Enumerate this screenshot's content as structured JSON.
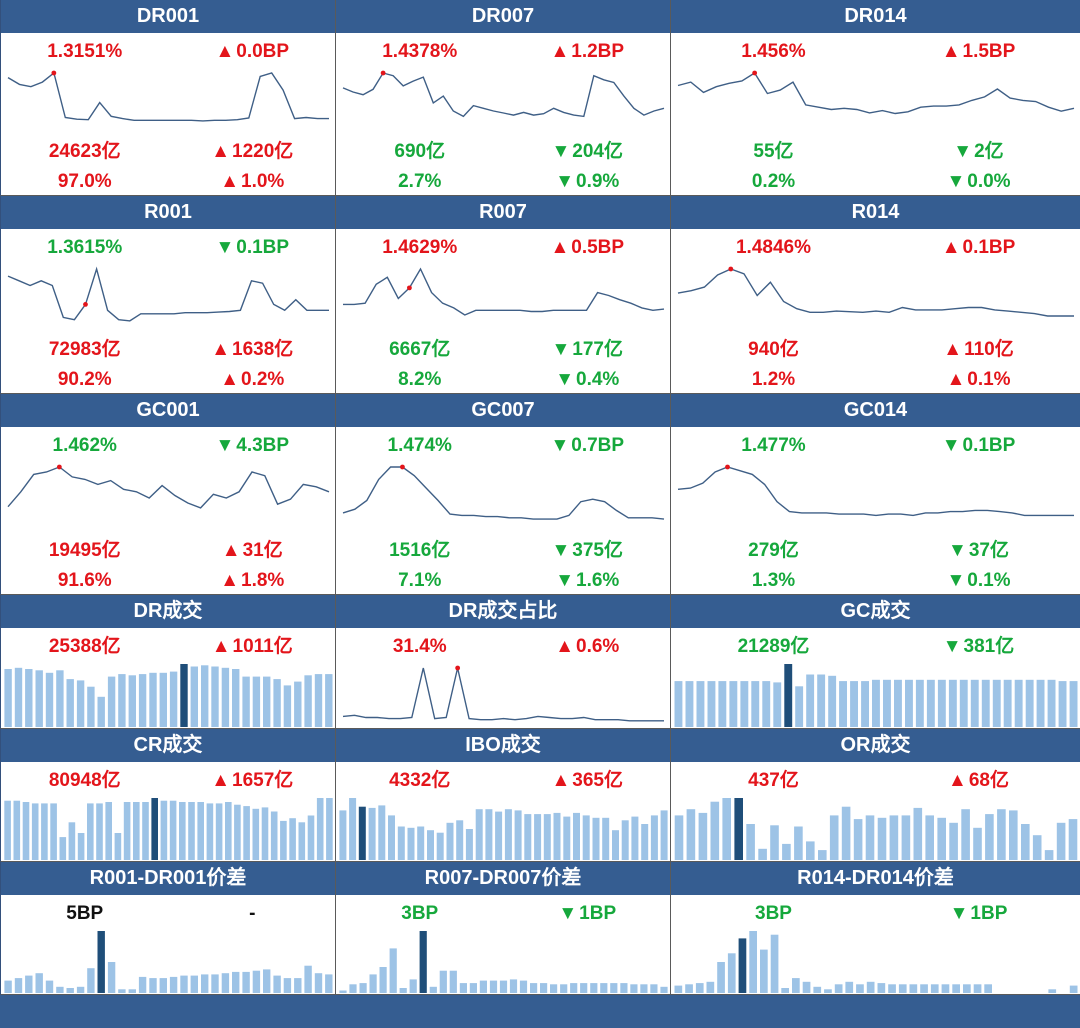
{
  "colors": {
    "header_bg": "#355d91",
    "up": "#e3151b",
    "down": "#16a83c",
    "neutral": "#111111",
    "line": "#3f5f86",
    "bar": "#9dc3e6",
    "bar_highlight": "#1f4e79",
    "marker": "#e3151b"
  },
  "panels": [
    {
      "title": "DR001",
      "kind": "line",
      "rows": [
        [
          {
            "text": "1.3151%",
            "color": "red"
          },
          {
            "text": "0.0BP",
            "color": "red",
            "dir": "up"
          }
        ],
        [
          {
            "text": "24623亿",
            "color": "red"
          },
          {
            "text": "1220亿",
            "color": "red",
            "dir": "up"
          }
        ],
        [
          {
            "text": "97.0%",
            "color": "red"
          },
          {
            "text": "1.0%",
            "color": "red",
            "dir": "up"
          }
        ]
      ],
      "marker_index": 4
    },
    {
      "title": "DR007",
      "kind": "line",
      "rows": [
        [
          {
            "text": "1.4378%",
            "color": "red"
          },
          {
            "text": "1.2BP",
            "color": "red",
            "dir": "up"
          }
        ],
        [
          {
            "text": "690亿",
            "color": "green"
          },
          {
            "text": "204亿",
            "color": "green",
            "dir": "down"
          }
        ],
        [
          {
            "text": "2.7%",
            "color": "green"
          },
          {
            "text": "0.9%",
            "color": "green",
            "dir": "down"
          }
        ]
      ],
      "marker_index": 4
    },
    {
      "title": "DR014",
      "kind": "line",
      "rows": [
        [
          {
            "text": "1.456%",
            "color": "red"
          },
          {
            "text": "1.5BP",
            "color": "red",
            "dir": "up"
          }
        ],
        [
          {
            "text": "55亿",
            "color": "green"
          },
          {
            "text": "2亿",
            "color": "green",
            "dir": "down"
          }
        ],
        [
          {
            "text": "0.2%",
            "color": "green"
          },
          {
            "text": "0.0%",
            "color": "green",
            "dir": "down"
          }
        ]
      ],
      "marker_index": 6
    },
    {
      "title": "R001",
      "kind": "line",
      "rows": [
        [
          {
            "text": "1.3615%",
            "color": "green"
          },
          {
            "text": "0.1BP",
            "color": "green",
            "dir": "down"
          }
        ],
        [
          {
            "text": "72983亿",
            "color": "red"
          },
          {
            "text": "1638亿",
            "color": "red",
            "dir": "up"
          }
        ],
        [
          {
            "text": "90.2%",
            "color": "red"
          },
          {
            "text": "0.2%",
            "color": "red",
            "dir": "up"
          }
        ]
      ],
      "marker_index": 7
    },
    {
      "title": "R007",
      "kind": "line",
      "rows": [
        [
          {
            "text": "1.4629%",
            "color": "red"
          },
          {
            "text": "0.5BP",
            "color": "red",
            "dir": "up"
          }
        ],
        [
          {
            "text": "6667亿",
            "color": "green"
          },
          {
            "text": "177亿",
            "color": "green",
            "dir": "down"
          }
        ],
        [
          {
            "text": "8.2%",
            "color": "green"
          },
          {
            "text": "0.4%",
            "color": "green",
            "dir": "down"
          }
        ]
      ],
      "marker_index": 6
    },
    {
      "title": "R014",
      "kind": "line",
      "rows": [
        [
          {
            "text": "1.4846%",
            "color": "red"
          },
          {
            "text": "0.1BP",
            "color": "red",
            "dir": "up"
          }
        ],
        [
          {
            "text": "940亿",
            "color": "red"
          },
          {
            "text": "110亿",
            "color": "red",
            "dir": "up"
          }
        ],
        [
          {
            "text": "1.2%",
            "color": "red"
          },
          {
            "text": "0.1%",
            "color": "red",
            "dir": "up"
          }
        ]
      ],
      "marker_index": 4
    },
    {
      "title": "GC001",
      "kind": "line",
      "rows": [
        [
          {
            "text": "1.462%",
            "color": "green"
          },
          {
            "text": "4.3BP",
            "color": "green",
            "dir": "down"
          }
        ],
        [
          {
            "text": "19495亿",
            "color": "red"
          },
          {
            "text": "31亿",
            "color": "red",
            "dir": "up"
          }
        ],
        [
          {
            "text": "91.6%",
            "color": "red"
          },
          {
            "text": "1.8%",
            "color": "red",
            "dir": "up"
          }
        ]
      ],
      "marker_index": 4
    },
    {
      "title": "GC007",
      "kind": "line",
      "rows": [
        [
          {
            "text": "1.474%",
            "color": "green"
          },
          {
            "text": "0.7BP",
            "color": "green",
            "dir": "down"
          }
        ],
        [
          {
            "text": "1516亿",
            "color": "green"
          },
          {
            "text": "375亿",
            "color": "green",
            "dir": "down"
          }
        ],
        [
          {
            "text": "7.1%",
            "color": "green"
          },
          {
            "text": "1.6%",
            "color": "green",
            "dir": "down"
          }
        ]
      ],
      "marker_index": 5
    },
    {
      "title": "GC014",
      "kind": "line",
      "rows": [
        [
          {
            "text": "1.477%",
            "color": "green"
          },
          {
            "text": "0.1BP",
            "color": "green",
            "dir": "down"
          }
        ],
        [
          {
            "text": "279亿",
            "color": "green"
          },
          {
            "text": "37亿",
            "color": "green",
            "dir": "down"
          }
        ],
        [
          {
            "text": "1.3%",
            "color": "green"
          },
          {
            "text": "0.1%",
            "color": "green",
            "dir": "down"
          }
        ]
      ],
      "marker_index": 4
    },
    {
      "title": "DR成交",
      "kind": "bar",
      "rows": [
        [
          {
            "text": "25388亿",
            "color": "red"
          },
          {
            "text": "1011亿",
            "color": "red",
            "dir": "up"
          }
        ]
      ],
      "highlight_index": 17
    },
    {
      "title": "DR成交占比",
      "kind": "line",
      "rows": [
        [
          {
            "text": "31.4%",
            "color": "red"
          },
          {
            "text": "0.6%",
            "color": "red",
            "dir": "up"
          }
        ]
      ],
      "marker_index": 10
    },
    {
      "title": "GC成交",
      "kind": "bar",
      "rows": [
        [
          {
            "text": "21289亿",
            "color": "green"
          },
          {
            "text": "381亿",
            "color": "green",
            "dir": "down"
          }
        ]
      ],
      "highlight_index": 10
    },
    {
      "title": "CR成交",
      "kind": "bar",
      "rows": [
        [
          {
            "text": "80948亿",
            "color": "red"
          },
          {
            "text": "1657亿",
            "color": "red",
            "dir": "up"
          }
        ]
      ],
      "highlight_index": 16
    },
    {
      "title": "IBO成交",
      "kind": "bar",
      "rows": [
        [
          {
            "text": "4332亿",
            "color": "red"
          },
          {
            "text": "365亿",
            "color": "red",
            "dir": "up"
          }
        ]
      ],
      "highlight_index": 2
    },
    {
      "title": "OR成交",
      "kind": "bar",
      "rows": [
        [
          {
            "text": "437亿",
            "color": "red"
          },
          {
            "text": "68亿",
            "color": "red",
            "dir": "up"
          }
        ]
      ],
      "highlight_index": 5
    },
    {
      "title": "R001-DR001价差",
      "kind": "bar",
      "rows": [
        [
          {
            "text": "5BP",
            "color": "black"
          },
          {
            "text": "-",
            "color": "black"
          }
        ]
      ],
      "highlight_index": 9
    },
    {
      "title": "R007-DR007价差",
      "kind": "bar",
      "rows": [
        [
          {
            "text": "3BP",
            "color": "green"
          },
          {
            "text": "1BP",
            "color": "green",
            "dir": "down"
          }
        ]
      ],
      "highlight_index": 8
    },
    {
      "title": "R014-DR014价差",
      "kind": "bar",
      "rows": [
        [
          {
            "text": "3BP",
            "color": "green"
          },
          {
            "text": "1BP",
            "color": "green",
            "dir": "down"
          }
        ]
      ],
      "highlight_index": 6
    }
  ],
  "chart_data": [
    {
      "type": "line",
      "title": "DR001",
      "values": [
        92,
        80,
        76,
        84,
        100,
        22,
        19,
        18,
        48,
        24,
        20,
        17,
        17,
        17,
        17,
        17,
        17,
        16,
        17,
        17,
        18,
        21,
        94,
        100,
        70,
        20,
        22,
        20,
        20
      ]
    },
    {
      "type": "line",
      "title": "DR007",
      "values": [
        62,
        56,
        52,
        60,
        84,
        80,
        65,
        72,
        78,
        40,
        50,
        28,
        20,
        36,
        32,
        28,
        25,
        22,
        26,
        22,
        24,
        32,
        26,
        22,
        20,
        80,
        74,
        70,
        50,
        32,
        22,
        28,
        32
      ]
    },
    {
      "type": "line",
      "title": "DR014",
      "values": [
        78,
        84,
        66,
        76,
        82,
        86,
        100,
        64,
        70,
        84,
        44,
        40,
        36,
        38,
        36,
        30,
        34,
        29,
        32,
        40,
        42,
        42,
        44,
        52,
        58,
        72,
        56,
        52,
        50,
        40,
        33,
        38
      ]
    },
    {
      "type": "line",
      "title": "R001",
      "values": [
        88,
        80,
        72,
        80,
        72,
        18,
        14,
        40,
        100,
        30,
        14,
        12,
        24,
        24,
        24,
        24,
        26,
        26,
        26,
        27,
        28,
        30,
        80,
        76,
        40,
        30,
        48,
        30,
        30,
        30
      ]
    },
    {
      "type": "line",
      "title": "R007",
      "values": [
        40,
        40,
        42,
        74,
        86,
        50,
        68,
        100,
        60,
        42,
        34,
        22,
        30,
        30,
        30,
        30,
        30,
        28,
        28,
        30,
        30,
        30,
        30,
        60,
        55,
        48,
        42,
        34,
        30,
        32
      ]
    },
    {
      "type": "line",
      "title": "R014",
      "values": [
        58,
        62,
        68,
        88,
        98,
        90,
        54,
        76,
        44,
        32,
        26,
        26,
        28,
        27,
        26,
        28,
        26,
        34,
        30,
        30,
        30,
        32,
        34,
        34,
        30,
        28,
        26,
        24,
        20,
        20,
        20
      ]
    },
    {
      "type": "line",
      "title": "GC001",
      "values": [
        36,
        60,
        88,
        92,
        100,
        84,
        80,
        72,
        78,
        64,
        60,
        50,
        70,
        54,
        42,
        34,
        56,
        50,
        60,
        92,
        86,
        40,
        48,
        72,
        68,
        60
      ]
    },
    {
      "type": "line",
      "title": "GC007",
      "values": [
        26,
        32,
        46,
        80,
        100,
        100,
        86,
        66,
        46,
        24,
        22,
        22,
        20,
        20,
        18,
        18,
        16,
        16,
        16,
        22,
        44,
        48,
        44,
        30,
        18,
        18,
        18,
        16
      ]
    },
    {
      "type": "line",
      "title": "GC014",
      "values": [
        64,
        66,
        74,
        92,
        100,
        94,
        88,
        72,
        44,
        28,
        26,
        26,
        26,
        24,
        24,
        24,
        22,
        24,
        24,
        22,
        26,
        26,
        28,
        28,
        30,
        30,
        28,
        26,
        22,
        22,
        22,
        22,
        22
      ]
    },
    {
      "type": "bar",
      "title": "DR成交",
      "values": [
        92,
        94,
        92,
        90,
        86,
        90,
        76,
        74,
        64,
        48,
        80,
        84,
        82,
        84,
        86,
        86,
        88,
        100,
        96,
        98,
        96,
        94,
        92,
        80,
        80,
        80,
        76,
        66,
        72,
        82,
        84,
        84
      ]
    },
    {
      "type": "line",
      "title": "DR成交占比",
      "values": [
        12,
        14,
        10,
        10,
        8,
        8,
        10,
        100,
        8,
        10,
        100,
        8,
        6,
        6,
        8,
        6,
        8,
        12,
        10,
        8,
        8,
        10,
        6,
        6,
        6,
        4,
        4,
        4,
        4
      ]
    },
    {
      "type": "bar",
      "title": "GC成交",
      "values": [
        70,
        70,
        70,
        70,
        70,
        70,
        70,
        70,
        70,
        68,
        96,
        62,
        80,
        80,
        78,
        70,
        70,
        70,
        72,
        72,
        72,
        72,
        72,
        72,
        72,
        72,
        72,
        72,
        72,
        72,
        72,
        72,
        72,
        72,
        72,
        70,
        70
      ]
    },
    {
      "type": "bar",
      "title": "CR成交",
      "values": [
        88,
        88,
        86,
        84,
        84,
        84,
        34,
        56,
        40,
        84,
        84,
        86,
        40,
        86,
        86,
        86,
        92,
        88,
        88,
        86,
        86,
        86,
        84,
        84,
        86,
        82,
        80,
        76,
        78,
        72,
        58,
        62,
        56,
        66,
        92,
        92
      ]
    },
    {
      "type": "bar",
      "title": "IBO成交",
      "values": [
        80,
        100,
        86,
        84,
        88,
        72,
        54,
        52,
        54,
        48,
        44,
        60,
        64,
        50,
        82,
        82,
        78,
        82,
        80,
        74,
        74,
        74,
        76,
        70,
        76,
        72,
        68,
        68,
        48,
        64,
        70,
        58,
        72,
        80
      ]
    },
    {
      "type": "bar",
      "title": "OR成交",
      "values": [
        72,
        82,
        76,
        94,
        100,
        100,
        58,
        18,
        56,
        26,
        54,
        30,
        16,
        72,
        86,
        66,
        72,
        68,
        72,
        72,
        84,
        72,
        68,
        60,
        82,
        52,
        74,
        82,
        80,
        58,
        40,
        16,
        60,
        66
      ]
    },
    {
      "type": "bar",
      "title": "R001-DR001价差",
      "values": [
        20,
        24,
        28,
        32,
        20,
        10,
        8,
        10,
        40,
        100,
        50,
        6,
        6,
        26,
        24,
        24,
        26,
        28,
        28,
        30,
        30,
        32,
        34,
        34,
        36,
        38,
        28,
        24,
        24,
        44,
        32,
        30
      ]
    },
    {
      "type": "bar",
      "title": "R007-DR007价差",
      "values": [
        4,
        14,
        16,
        30,
        42,
        72,
        8,
        22,
        100,
        10,
        36,
        36,
        16,
        16,
        20,
        20,
        20,
        22,
        20,
        16,
        16,
        14,
        14,
        16,
        16,
        16,
        16,
        16,
        16,
        14,
        14,
        14,
        10
      ]
    },
    {
      "type": "bar",
      "title": "R014-DR014价差",
      "values": [
        12,
        14,
        16,
        18,
        50,
        64,
        88,
        100,
        70,
        94,
        8,
        24,
        18,
        10,
        6,
        14,
        18,
        14,
        18,
        16,
        14,
        14,
        14,
        14,
        14,
        14,
        14,
        14,
        14,
        14,
        0,
        0,
        0,
        0,
        0,
        6,
        0,
        12
      ]
    }
  ]
}
